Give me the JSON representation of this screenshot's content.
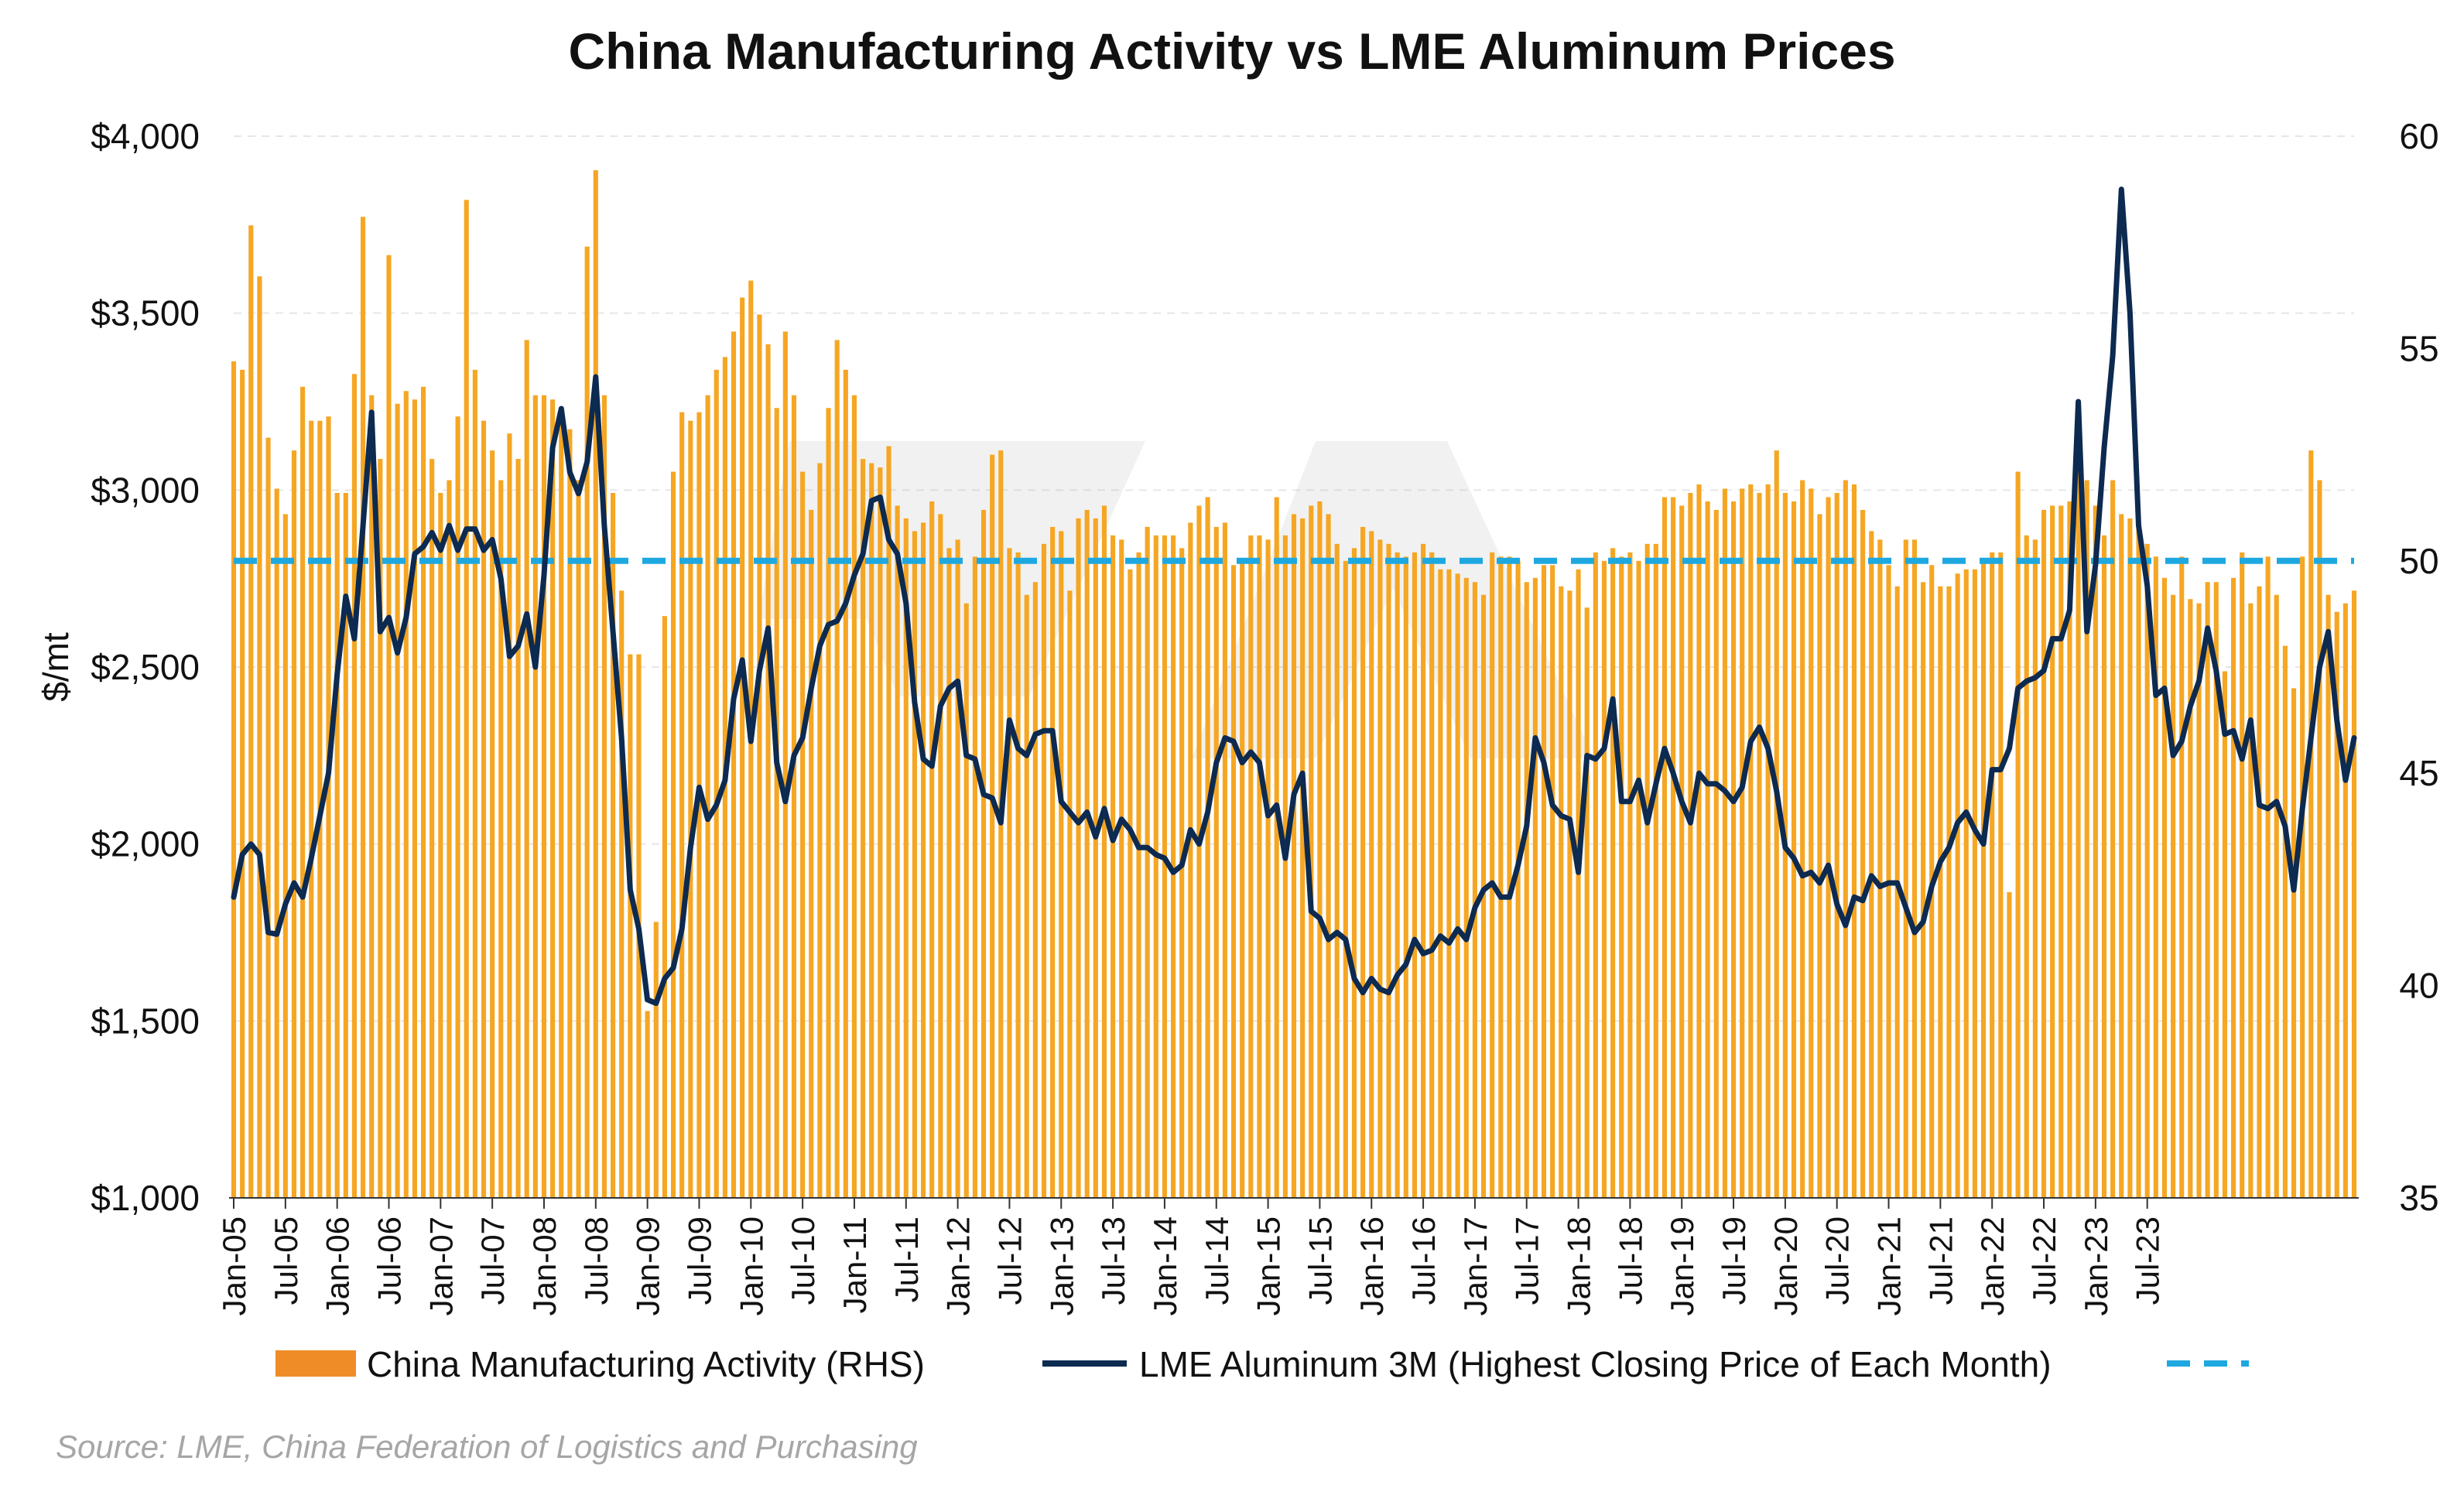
{
  "title": "China Manufacturing Activity vs LME Aluminum Prices",
  "source": "Source: LME, China Federation of Logistics and Purchasing",
  "colors": {
    "bar": "#f5a623",
    "bar_stroke": "#f0a020",
    "legend_bar": "#f08c28",
    "line": "#0d2a50",
    "reference_line": "#1ea8e0",
    "grid": "#e6e6e6"
  },
  "chart_data": {
    "type": "bar+line",
    "title": "China Manufacturing Activity vs LME Aluminum Prices",
    "ylabel": "$/mt",
    "y_left_range": [
      1000,
      4000
    ],
    "y_left_ticks": [
      "$1,000",
      "$1,500",
      "$2,000",
      "$2,500",
      "$3,000",
      "$3,500",
      "$4,000"
    ],
    "y_right_range": [
      35,
      60
    ],
    "y_right_ticks": [
      "35",
      "40",
      "45",
      "50",
      "55",
      "60"
    ],
    "x_start": "Jan-05",
    "x_end": "Jul-23",
    "x_ticks": [
      "Jan-05",
      "Jul-05",
      "Jan-06",
      "Jul-06",
      "Jan-07",
      "Jul-07",
      "Jan-08",
      "Jul-08",
      "Jan-09",
      "Jul-09",
      "Jan-10",
      "Jul-10",
      "Jan-11",
      "Jul-11",
      "Jan-12",
      "Jul-12",
      "Jan-13",
      "Jul-13",
      "Jan-14",
      "Jul-14",
      "Jan-15",
      "Jul-15",
      "Jan-16",
      "Jul-16",
      "Jan-17",
      "Jul-17",
      "Jan-18",
      "Jul-18",
      "Jan-19",
      "Jul-19",
      "Jan-20",
      "Jul-20",
      "Jan-21",
      "Jul-21",
      "Jan-22",
      "Jul-22",
      "Jan-23",
      "Jul-23"
    ],
    "reference_value_rhs": 50,
    "grid": "horizontal",
    "legend_position": "bottom",
    "series": [
      {
        "name": "China Manufacturing Activity (RHS)",
        "type": "bar",
        "axis": "right",
        "values": [
          54.7,
          54.5,
          57.9,
          56.7,
          52.9,
          51.7,
          51.1,
          52.6,
          54.1,
          53.3,
          53.3,
          53.4,
          51.6,
          51.6,
          54.4,
          58.1,
          53.9,
          52.4,
          57.2,
          53.7,
          54.0,
          53.8,
          54.1,
          52.4,
          51.6,
          51.9,
          53.4,
          58.5,
          54.5,
          53.3,
          52.6,
          51.9,
          53.0,
          52.4,
          55.2,
          53.9,
          53.9,
          53.8,
          53.4,
          53.1,
          51.9,
          57.4,
          59.2,
          53.9,
          51.6,
          49.3,
          47.8,
          47.8,
          39.4,
          41.5,
          48.7,
          52.1,
          53.5,
          53.3,
          53.5,
          53.9,
          54.5,
          54.8,
          55.4,
          56.2,
          56.6,
          55.8,
          55.1,
          53.6,
          55.4,
          53.9,
          52.1,
          51.2,
          52.3,
          53.6,
          55.2,
          54.5,
          53.9,
          52.4,
          52.3,
          52.2,
          52.7,
          51.3,
          51.0,
          50.7,
          50.9,
          51.4,
          51.1,
          50.3,
          50.5,
          49.0,
          50.1,
          51.2,
          52.5,
          52.6,
          50.3,
          50.2,
          49.2,
          49.5,
          50.4,
          50.8,
          50.7,
          49.3,
          51.0,
          51.2,
          51.0,
          51.3,
          50.6,
          50.5,
          49.8,
          50.2,
          50.8,
          50.6,
          50.6,
          50.6,
          50.3,
          50.9,
          51.3,
          51.5,
          50.8,
          50.9,
          49.9,
          50.0,
          50.6,
          50.6,
          50.5,
          51.5,
          50.6,
          51.1,
          51.0,
          51.3,
          51.4,
          51.1,
          50.4,
          50.0,
          50.3,
          50.8,
          50.7,
          50.5,
          50.4,
          50.2,
          50.1,
          50.2,
          50.4,
          50.2,
          49.8,
          49.8,
          49.7,
          49.6,
          49.5,
          49.2,
          50.2,
          50.1,
          50.1,
          50.0,
          49.5,
          49.6,
          49.9,
          49.9,
          49.4,
          49.3,
          49.8,
          48.9,
          50.2,
          50.0,
          50.3,
          50.1,
          50.2,
          50.0,
          50.4,
          50.4,
          51.5,
          51.5,
          51.3,
          51.6,
          51.8,
          51.4,
          51.2,
          51.7,
          51.4,
          51.7,
          51.8,
          51.6,
          51.8,
          52.6,
          51.6,
          51.4,
          51.9,
          51.7,
          51.1,
          51.5,
          51.6,
          51.9,
          51.8,
          51.2,
          50.7,
          50.5,
          49.9,
          49.4,
          50.5,
          50.5,
          49.5,
          49.9,
          49.4,
          49.4,
          49.7,
          49.8,
          49.8,
          50.0,
          50.2,
          50.2,
          42.2,
          52.1,
          50.6,
          50.5,
          51.2,
          51.3,
          51.3,
          51.4,
          52.2,
          51.9,
          51.3,
          50.6,
          51.9,
          51.1,
          51.0,
          50.9,
          50.4,
          50.1,
          49.6,
          49.2,
          50.1,
          49.1,
          49.0,
          49.5,
          49.5,
          47.4,
          49.6,
          50.2,
          49.0,
          49.4,
          50.1,
          49.2,
          48.0,
          47.0,
          50.1,
          52.6,
          51.9,
          49.2,
          48.8,
          49.0,
          49.3
        ]
      },
      {
        "name": "LME Aluminum 3M (Highest Closing Price of Each Month)",
        "type": "line",
        "axis": "left",
        "values": [
          1850,
          1970,
          2000,
          1970,
          1750,
          1745,
          1830,
          1890,
          1850,
          1960,
          2080,
          2200,
          2480,
          2700,
          2580,
          2900,
          3220,
          2600,
          2640,
          2540,
          2640,
          2820,
          2840,
          2880,
          2830,
          2900,
          2830,
          2890,
          2890,
          2830,
          2860,
          2750,
          2530,
          2560,
          2650,
          2500,
          2760,
          3120,
          3230,
          3050,
          2990,
          3080,
          3320,
          2900,
          2600,
          2300,
          1870,
          1760,
          1560,
          1550,
          1620,
          1650,
          1760,
          1990,
          2160,
          2070,
          2110,
          2180,
          2410,
          2520,
          2290,
          2490,
          2610,
          2230,
          2120,
          2250,
          2300,
          2440,
          2560,
          2620,
          2630,
          2680,
          2760,
          2820,
          2970,
          2980,
          2860,
          2820,
          2680,
          2400,
          2240,
          2220,
          2390,
          2440,
          2460,
          2250,
          2240,
          2140,
          2130,
          2060,
          2350,
          2270,
          2250,
          2310,
          2320,
          2320,
          2120,
          2090,
          2060,
          2090,
          2020,
          2100,
          2010,
          2070,
          2040,
          1990,
          1990,
          1970,
          1960,
          1920,
          1940,
          2040,
          2000,
          2090,
          2230,
          2300,
          2290,
          2230,
          2260,
          2230,
          2080,
          2110,
          1960,
          2140,
          2200,
          1810,
          1790,
          1730,
          1750,
          1730,
          1620,
          1580,
          1620,
          1590,
          1580,
          1630,
          1660,
          1730,
          1690,
          1700,
          1740,
          1720,
          1760,
          1730,
          1820,
          1870,
          1890,
          1850,
          1850,
          1940,
          2050,
          2300,
          2230,
          2110,
          2080,
          2070,
          1920,
          2250,
          2240,
          2270,
          2410,
          2120,
          2120,
          2180,
          2060,
          2170,
          2270,
          2200,
          2120,
          2060,
          2200,
          2170,
          2170,
          2150,
          2120,
          2160,
          2290,
          2330,
          2270,
          2150,
          1990,
          1960,
          1910,
          1920,
          1890,
          1940,
          1830,
          1770,
          1850,
          1840,
          1910,
          1880,
          1890,
          1890,
          1820,
          1750,
          1780,
          1880,
          1950,
          1990,
          2060,
          2090,
          2040,
          2000,
          2210,
          2210,
          2270,
          2440,
          2460,
          2470,
          2490,
          2580,
          2580,
          2660,
          3250,
          2600,
          2790,
          3120,
          3380,
          3850,
          3500,
          2900,
          2730,
          2420,
          2440,
          2250,
          2290,
          2390,
          2460,
          2610,
          2490,
          2310,
          2320,
          2240,
          2350,
          2110,
          2100,
          2120,
          2050,
          1870,
          2100,
          2300,
          2500,
          2600,
          2350,
          2180,
          2300
        ]
      }
    ]
  },
  "legend": {
    "items": [
      {
        "label": "China Manufacturing Activity (RHS)",
        "marker": "bar"
      },
      {
        "label": "LME Aluminum 3M (Highest Closing Price of Each Month)",
        "marker": "line"
      },
      {
        "label": "",
        "marker": "dashed-line"
      }
    ]
  }
}
